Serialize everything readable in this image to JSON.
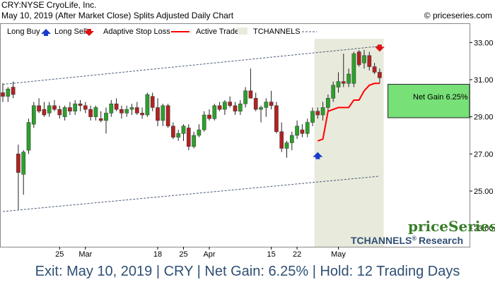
{
  "header": {
    "title_line1": "CRY:NYSE CryoLife, Inc.",
    "title_line2": "May 10, 2019 (After Market Close)  Splits Adjusted Daily Chart",
    "copyright": "© priceseries.com"
  },
  "legend": {
    "long_buy": "Long Buy",
    "long_sell": "Long Sell",
    "adaptive_stop": "Adaptive Stop Loss",
    "active_trade": "Active Trade",
    "tchannels": "TCHANNELS"
  },
  "brand": {
    "name": "priceSeries",
    "sub": "TCHANNELS",
    "reg": "®",
    "research": "Research"
  },
  "footer": {
    "text": "Exit: May 10, 2019 | CRY | Net Gain: 6.25% | Hold: 12 Trading Days"
  },
  "colors": {
    "up": "#2ca02c",
    "down": "#b22222",
    "stop": "#ff0000",
    "active_trade_bg": "#e8eadc",
    "gain_box": "#77e077",
    "channel": "#4a5a7a",
    "buy_arrow": "#1a3ccc",
    "sell_arrow": "#dd1111"
  },
  "chart_data": {
    "type": "candlestick",
    "ylim": [
      22.0,
      34.0
    ],
    "y_ticks": [
      23.0,
      25.0,
      27.0,
      29.0,
      31.0,
      33.0
    ],
    "y_tick_labels": [
      "23.00",
      "25.00",
      "27.00",
      "29.00",
      "31.00",
      "33.00"
    ],
    "x_tick_labels": [
      {
        "label": "25",
        "index": 11
      },
      {
        "label": "Mar",
        "index": 16
      },
      {
        "label": "18",
        "index": 30
      },
      {
        "label": "25",
        "index": 35
      },
      {
        "label": "Apr",
        "index": 40
      },
      {
        "label": "15",
        "index": 52
      },
      {
        "label": "22",
        "index": 57
      },
      {
        "label": "May",
        "index": 65
      }
    ],
    "candles": [
      [
        30.3,
        30.8,
        29.8,
        30.1
      ],
      [
        30.1,
        30.6,
        29.8,
        30.5
      ],
      [
        30.6,
        30.9,
        30.0,
        30.2
      ],
      [
        27.0,
        27.5,
        24.0,
        26.0
      ],
      [
        25.9,
        27.2,
        24.8,
        27.1
      ],
      [
        27.2,
        28.9,
        27.0,
        28.7
      ],
      [
        28.6,
        29.8,
        28.4,
        29.6
      ],
      [
        29.6,
        30.0,
        29.2,
        29.3
      ],
      [
        29.4,
        29.8,
        29.0,
        29.1
      ],
      [
        29.2,
        29.8,
        29.0,
        29.6
      ],
      [
        29.6,
        29.9,
        29.3,
        29.4
      ],
      [
        29.4,
        29.6,
        28.9,
        29.1
      ],
      [
        29.0,
        29.6,
        28.8,
        29.5
      ],
      [
        29.5,
        29.8,
        29.1,
        29.3
      ],
      [
        29.3,
        29.9,
        29.1,
        29.7
      ],
      [
        29.7,
        29.9,
        29.3,
        29.6
      ],
      [
        29.6,
        29.8,
        29.2,
        29.4
      ],
      [
        29.4,
        29.6,
        28.8,
        29.0
      ],
      [
        29.0,
        29.6,
        28.8,
        29.5
      ],
      [
        28.9,
        29.3,
        28.7,
        28.8
      ],
      [
        28.8,
        29.5,
        28.1,
        29.2
      ],
      [
        29.2,
        29.9,
        29.0,
        29.7
      ],
      [
        29.7,
        30.0,
        29.3,
        29.4
      ],
      [
        29.4,
        29.6,
        28.9,
        29.2
      ],
      [
        29.2,
        29.6,
        29.0,
        29.4
      ],
      [
        29.4,
        29.7,
        29.1,
        29.5
      ],
      [
        29.5,
        29.8,
        29.1,
        29.2
      ],
      [
        29.2,
        29.5,
        28.9,
        29.1
      ],
      [
        29.1,
        30.3,
        29.0,
        30.2
      ],
      [
        30.1,
        30.3,
        29.3,
        29.5
      ],
      [
        29.5,
        30.0,
        28.5,
        28.8
      ],
      [
        28.8,
        29.7,
        28.5,
        29.6
      ],
      [
        29.6,
        29.7,
        28.4,
        28.5
      ],
      [
        28.5,
        28.7,
        27.8,
        27.9
      ],
      [
        27.9,
        28.3,
        27.7,
        28.1
      ],
      [
        28.1,
        28.6,
        27.7,
        28.5
      ],
      [
        28.4,
        28.6,
        27.2,
        27.4
      ],
      [
        27.4,
        28.2,
        27.3,
        28.0
      ],
      [
        28.0,
        28.6,
        27.9,
        28.3
      ],
      [
        28.3,
        29.3,
        28.2,
        29.1
      ],
      [
        29.1,
        29.4,
        28.8,
        28.9
      ],
      [
        28.9,
        29.7,
        28.8,
        29.6
      ],
      [
        29.6,
        29.8,
        29.3,
        29.4
      ],
      [
        29.4,
        29.9,
        29.1,
        29.8
      ],
      [
        29.8,
        30.1,
        29.5,
        29.6
      ],
      [
        29.6,
        29.8,
        29.1,
        29.3
      ],
      [
        29.3,
        29.9,
        29.1,
        29.7
      ],
      [
        29.7,
        30.6,
        29.5,
        30.4
      ],
      [
        30.4,
        31.6,
        30.0,
        30.0
      ],
      [
        30.0,
        30.3,
        29.3,
        29.4
      ],
      [
        29.4,
        29.6,
        28.7,
        29.5
      ],
      [
        29.5,
        30.0,
        29.0,
        29.8
      ],
      [
        29.8,
        30.4,
        29.4,
        29.6
      ],
      [
        29.6,
        29.8,
        28.1,
        28.2
      ],
      [
        28.2,
        28.7,
        27.1,
        27.3
      ],
      [
        27.3,
        27.7,
        26.8,
        27.6
      ],
      [
        27.6,
        28.2,
        27.2,
        28.0
      ],
      [
        28.0,
        28.8,
        27.8,
        28.5
      ],
      [
        28.3,
        28.6,
        27.9,
        28.1
      ],
      [
        28.1,
        28.9,
        27.9,
        28.7
      ],
      [
        28.7,
        29.5,
        28.5,
        29.3
      ],
      [
        29.3,
        29.5,
        28.9,
        29.1
      ],
      [
        29.1,
        29.8,
        28.8,
        29.5
      ],
      [
        29.5,
        30.2,
        29.3,
        30.0
      ],
      [
        30.0,
        30.9,
        29.8,
        30.7
      ],
      [
        30.6,
        31.4,
        30.3,
        30.9
      ],
      [
        30.9,
        32.4,
        30.6,
        30.8
      ],
      [
        30.8,
        31.6,
        30.6,
        31.3
      ],
      [
        30.8,
        32.5,
        30.6,
        32.4
      ],
      [
        32.5,
        32.6,
        31.7,
        31.8
      ],
      [
        31.9,
        32.6,
        31.6,
        32.3
      ],
      [
        32.3,
        32.5,
        31.5,
        31.7
      ],
      [
        31.7,
        31.9,
        31.3,
        31.4
      ],
      [
        31.4,
        31.6,
        30.8,
        31.1
      ]
    ],
    "active_trade": {
      "start_index": 61,
      "end_index": 73
    },
    "stop_line": [
      {
        "i": 61,
        "v": 27.7
      },
      {
        "i": 62,
        "v": 27.8
      },
      {
        "i": 63,
        "v": 29.3
      },
      {
        "i": 64,
        "v": 29.4
      },
      {
        "i": 65,
        "v": 29.5
      },
      {
        "i": 66,
        "v": 29.5
      },
      {
        "i": 67,
        "v": 29.5
      },
      {
        "i": 68,
        "v": 29.9
      },
      {
        "i": 69,
        "v": 29.9
      },
      {
        "i": 70,
        "v": 30.4
      },
      {
        "i": 71,
        "v": 30.7
      },
      {
        "i": 72,
        "v": 30.8
      },
      {
        "i": 73,
        "v": 30.8
      }
    ],
    "channel_upper": [
      {
        "i": 0,
        "v": 30.75
      },
      {
        "i": 73,
        "v": 32.8
      }
    ],
    "channel_lower": [
      {
        "i": 0,
        "v": 23.9
      },
      {
        "i": 73,
        "v": 25.8
      }
    ],
    "buy_signal": {
      "index": 61,
      "value": 27.1
    },
    "sell_signal": {
      "index": 73,
      "value": 32.7
    },
    "net_gain": {
      "label": "Net Gain 6.25%",
      "entry": 28.95,
      "exit": 30.75
    }
  }
}
